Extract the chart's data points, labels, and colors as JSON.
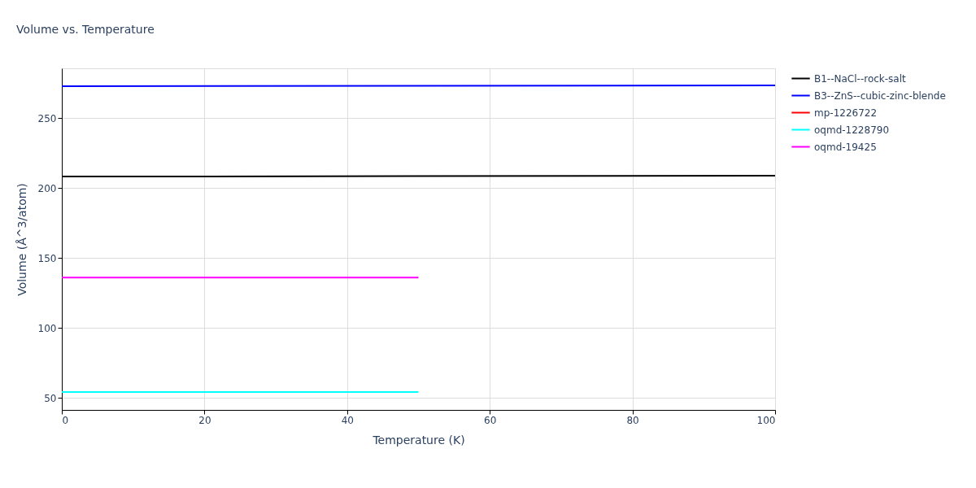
{
  "chart_data": {
    "type": "line",
    "title": "Volume vs. Temperature",
    "xlabel": "Temperature (K)",
    "ylabel": "Volume (Å^3/atom)",
    "series": [
      {
        "name": "B1--NaCl--rock-salt",
        "color": "#000000",
        "x": [
          0,
          100
        ],
        "values": [
          208.1,
          208.7
        ]
      },
      {
        "name": "B3--ZnS--cubic-zinc-blende",
        "color": "#0000ff",
        "x": [
          0,
          100
        ],
        "values": [
          272.7,
          273.3
        ]
      },
      {
        "name": "mp-1226722",
        "color": "#ff0000"
      },
      {
        "name": "oqmd-1228790",
        "color": "#00ffff",
        "x": [
          0,
          50
        ],
        "values": [
          54.1,
          54.1
        ]
      },
      {
        "name": "oqmd-19425",
        "color": "#ff00ff",
        "x": [
          0,
          50
        ],
        "values": [
          136.0,
          136.0
        ]
      }
    ],
    "xlim": [
      0,
      100
    ],
    "xticks": [
      0,
      20,
      40,
      60,
      80,
      100
    ],
    "ylim": [
      41.3,
      285.5
    ],
    "yticks": [
      50,
      100,
      150,
      200,
      250
    ],
    "grid": true,
    "legend": "top right",
    "marker": "none",
    "line_style": "solid"
  }
}
